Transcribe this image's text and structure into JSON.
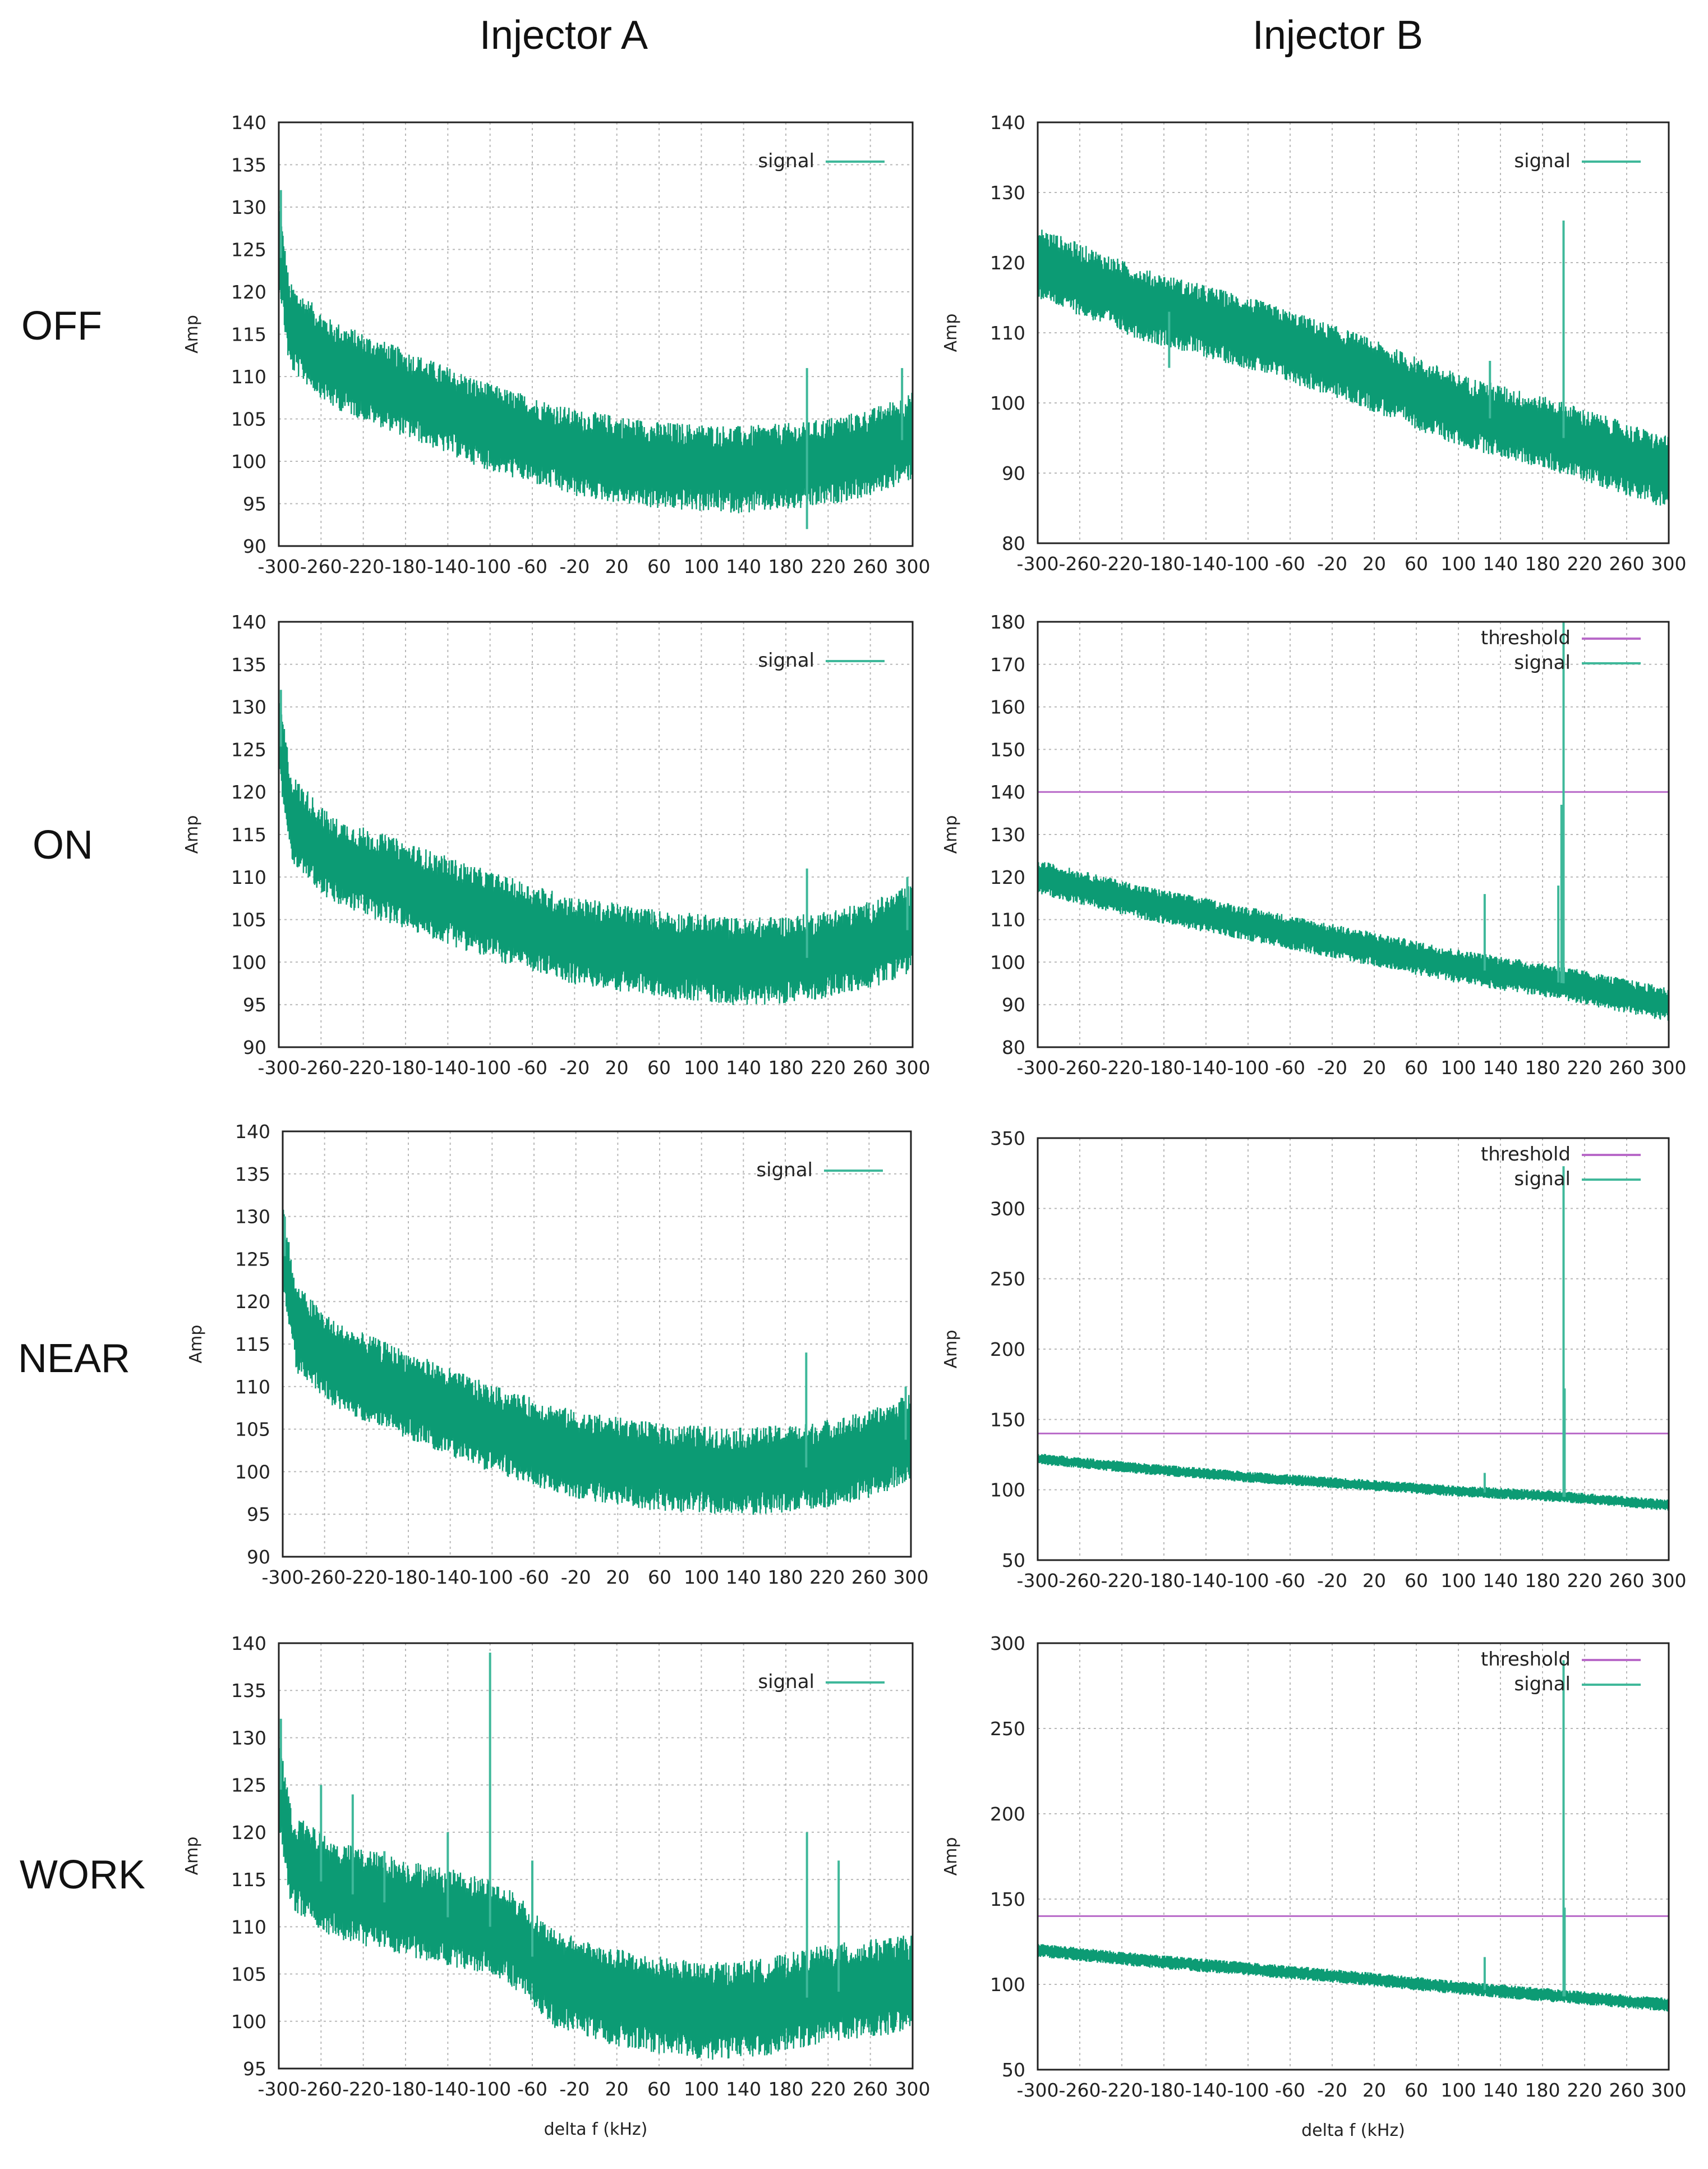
{
  "column_titles": [
    "Injector A",
    "Injector B"
  ],
  "row_labels": [
    "OFF",
    "ON",
    "NEAR",
    "WORK"
  ],
  "colors": {
    "signal": "#0c9b74",
    "signal_light": "#3fb89a",
    "threshold": "#b869c8",
    "grid": "#b8b8b8"
  },
  "chart_data": [
    {
      "id": "A-OFF",
      "type": "line",
      "column": "Injector A",
      "row": "OFF",
      "title": "",
      "xlabel": "",
      "ylabel": "Amp",
      "xlim": [
        -300,
        300
      ],
      "ylim": [
        90,
        140
      ],
      "xticks": [
        -300,
        -260,
        -220,
        -180,
        -140,
        -100,
        -60,
        -20,
        20,
        60,
        100,
        140,
        180,
        220,
        260,
        300
      ],
      "yticks": [
        90,
        95,
        100,
        105,
        110,
        115,
        120,
        125,
        130,
        135,
        140
      ],
      "legend": [
        "signal"
      ],
      "series": [
        {
          "name": "signal",
          "baseline": [
            [
              -300,
              126
            ],
            [
              -290,
              116
            ],
            [
              -250,
              111.5
            ],
            [
              -180,
              108
            ],
            [
              -100,
              104
            ],
            [
              -20,
              101
            ],
            [
              60,
              99.5
            ],
            [
              140,
              99
            ],
            [
              200,
              99.5
            ],
            [
              260,
              101
            ],
            [
              300,
              103
            ]
          ],
          "noise": 4.5,
          "spikes": [
            [
              -298,
              132
            ],
            [
              200,
              111
            ],
            [
              200,
              92
            ],
            [
              290,
              111
            ]
          ]
        }
      ]
    },
    {
      "id": "B-OFF",
      "type": "line",
      "column": "Injector B",
      "row": "OFF",
      "title": "",
      "xlabel": "",
      "ylabel": "Amp",
      "xlim": [
        -300,
        300
      ],
      "ylim": [
        80,
        140
      ],
      "xticks": [
        -300,
        -260,
        -220,
        -180,
        -140,
        -100,
        -60,
        -20,
        20,
        60,
        100,
        140,
        180,
        220,
        260,
        300
      ],
      "yticks": [
        80,
        90,
        100,
        110,
        120,
        130,
        140
      ],
      "legend": [
        "signal"
      ],
      "series": [
        {
          "name": "signal",
          "baseline": [
            [
              -300,
              120
            ],
            [
              -200,
              114
            ],
            [
              -100,
              110
            ],
            [
              0,
              105
            ],
            [
              100,
              99
            ],
            [
              200,
              95
            ],
            [
              300,
              90
            ]
          ],
          "noise": 4.5,
          "spikes": [
            [
              200,
              126
            ],
            [
              130,
              106
            ],
            [
              -175,
              105
            ]
          ]
        }
      ]
    },
    {
      "id": "A-ON",
      "type": "line",
      "column": "Injector A",
      "row": "ON",
      "title": "",
      "xlabel": "",
      "ylabel": "Amp",
      "xlim": [
        -300,
        300
      ],
      "ylim": [
        90,
        140
      ],
      "xticks": [
        -300,
        -260,
        -220,
        -180,
        -140,
        -100,
        -60,
        -20,
        20,
        60,
        100,
        140,
        180,
        220,
        260,
        300
      ],
      "yticks": [
        90,
        95,
        100,
        105,
        110,
        115,
        120,
        125,
        130,
        135,
        140
      ],
      "legend": [
        "signal"
      ],
      "series": [
        {
          "name": "signal",
          "baseline": [
            [
              -300,
              127
            ],
            [
              -288,
              117
            ],
            [
              -250,
              112
            ],
            [
              -180,
              109
            ],
            [
              -100,
              105.5
            ],
            [
              -20,
              102.5
            ],
            [
              60,
              101
            ],
            [
              140,
              100
            ],
            [
              200,
              100.5
            ],
            [
              260,
              102
            ],
            [
              300,
              104
            ]
          ],
          "noise": 4.5,
          "spikes": [
            [
              -298,
              132
            ],
            [
              200,
              111
            ],
            [
              295,
              110
            ]
          ]
        }
      ]
    },
    {
      "id": "B-ON",
      "type": "line",
      "column": "Injector B",
      "row": "ON",
      "title": "",
      "xlabel": "",
      "ylabel": "Amp",
      "xlim": [
        -300,
        300
      ],
      "ylim": [
        80,
        180
      ],
      "xticks": [
        -300,
        -260,
        -220,
        -180,
        -140,
        -100,
        -60,
        -20,
        20,
        60,
        100,
        140,
        180,
        220,
        260,
        300
      ],
      "yticks": [
        80,
        90,
        100,
        110,
        120,
        130,
        140,
        150,
        160,
        170,
        180
      ],
      "legend": [
        "threshold",
        "signal"
      ],
      "threshold": 140,
      "series": [
        {
          "name": "signal",
          "baseline": [
            [
              -300,
              120
            ],
            [
              -200,
              114
            ],
            [
              -100,
              109
            ],
            [
              0,
              104
            ],
            [
              100,
              99
            ],
            [
              200,
              95
            ],
            [
              300,
              90
            ]
          ],
          "noise": 3.5,
          "spikes": [
            [
              200,
              180
            ],
            [
              198,
              137
            ],
            [
              195,
              118
            ],
            [
              125,
              116
            ]
          ]
        }
      ]
    },
    {
      "id": "A-NEAR",
      "type": "line",
      "column": "Injector A",
      "row": "NEAR",
      "title": "",
      "xlabel": "",
      "ylabel": "Amp",
      "xlim": [
        -300,
        300
      ],
      "ylim": [
        90,
        140
      ],
      "xticks": [
        -300,
        -260,
        -220,
        -180,
        -140,
        -100,
        -60,
        -20,
        20,
        60,
        100,
        140,
        180,
        220,
        260,
        300
      ],
      "yticks": [
        90,
        95,
        100,
        105,
        110,
        115,
        120,
        125,
        130,
        135,
        140
      ],
      "legend": [
        "signal"
      ],
      "series": [
        {
          "name": "signal",
          "baseline": [
            [
              -300,
              127
            ],
            [
              -288,
              117
            ],
            [
              -250,
              112.5
            ],
            [
              -180,
              109
            ],
            [
              -100,
              105
            ],
            [
              -20,
              102
            ],
            [
              60,
              100.5
            ],
            [
              140,
              100
            ],
            [
              200,
              100.5
            ],
            [
              260,
              102
            ],
            [
              300,
              104
            ]
          ],
          "noise": 4.5,
          "spikes": [
            [
              -298,
              130
            ],
            [
              200,
              114
            ],
            [
              295,
              110
            ]
          ]
        }
      ]
    },
    {
      "id": "B-NEAR",
      "type": "line",
      "column": "Injector B",
      "row": "NEAR",
      "title": "",
      "xlabel": "",
      "ylabel": "Amp",
      "xlim": [
        -300,
        300
      ],
      "ylim": [
        50,
        350
      ],
      "xticks": [
        -300,
        -260,
        -220,
        -180,
        -140,
        -100,
        -60,
        -20,
        20,
        60,
        100,
        140,
        180,
        220,
        260,
        300
      ],
      "yticks": [
        50,
        100,
        150,
        200,
        250,
        300,
        350
      ],
      "legend": [
        "threshold",
        "signal"
      ],
      "threshold": 140,
      "series": [
        {
          "name": "signal",
          "baseline": [
            [
              -300,
              122
            ],
            [
              -200,
              115
            ],
            [
              -100,
              109
            ],
            [
              0,
              104
            ],
            [
              100,
              99
            ],
            [
              200,
              95
            ],
            [
              300,
              89
            ]
          ],
          "noise": 3.5,
          "spikes": [
            [
              200,
              330
            ],
            [
              201,
              172
            ],
            [
              125,
              112
            ]
          ]
        }
      ]
    },
    {
      "id": "A-WORK",
      "type": "line",
      "column": "Injector A",
      "row": "WORK",
      "title": "",
      "xlabel": "delta f (kHz)",
      "ylabel": "Amp",
      "xlim": [
        -300,
        300
      ],
      "ylim": [
        95,
        140
      ],
      "xticks": [
        -300,
        -260,
        -220,
        -180,
        -140,
        -100,
        -60,
        -20,
        20,
        60,
        100,
        140,
        180,
        220,
        260,
        300
      ],
      "yticks": [
        95,
        100,
        105,
        110,
        115,
        120,
        125,
        130,
        135,
        140
      ],
      "legend": [
        "signal"
      ],
      "series": [
        {
          "name": "signal",
          "baseline": [
            [
              -300,
              126
            ],
            [
              -288,
              117
            ],
            [
              -250,
              114
            ],
            [
              -180,
              112
            ],
            [
              -100,
              110
            ],
            [
              -70,
              108
            ],
            [
              -40,
              104.5
            ],
            [
              20,
              102.5
            ],
            [
              100,
              101
            ],
            [
              160,
              101.5
            ],
            [
              220,
              103
            ],
            [
              300,
              104
            ]
          ],
          "noise": 4.5,
          "spikes": [
            [
              -298,
              132
            ],
            [
              -260,
              125
            ],
            [
              -230,
              124
            ],
            [
              -100,
              139
            ],
            [
              -140,
              120
            ],
            [
              -60,
              117
            ],
            [
              200,
              120
            ],
            [
              -200,
              118
            ],
            [
              230,
              117
            ]
          ]
        }
      ]
    },
    {
      "id": "B-WORK",
      "type": "line",
      "column": "Injector B",
      "row": "WORK",
      "title": "",
      "xlabel": "delta f (kHz)",
      "ylabel": "Amp",
      "xlim": [
        -300,
        300
      ],
      "ylim": [
        50,
        300
      ],
      "xticks": [
        -300,
        -260,
        -220,
        -180,
        -140,
        -100,
        -60,
        -20,
        20,
        60,
        100,
        140,
        180,
        220,
        260,
        300
      ],
      "yticks": [
        50,
        100,
        150,
        200,
        250,
        300
      ],
      "legend": [
        "threshold",
        "signal"
      ],
      "threshold": 140,
      "series": [
        {
          "name": "signal",
          "baseline": [
            [
              -300,
              120
            ],
            [
              -200,
              114
            ],
            [
              -100,
              109
            ],
            [
              0,
              104
            ],
            [
              100,
              98
            ],
            [
              200,
              93
            ],
            [
              300,
              88
            ]
          ],
          "noise": 3.5,
          "spikes": [
            [
              200,
              290
            ],
            [
              201,
              145
            ],
            [
              125,
              116
            ]
          ]
        }
      ]
    }
  ]
}
